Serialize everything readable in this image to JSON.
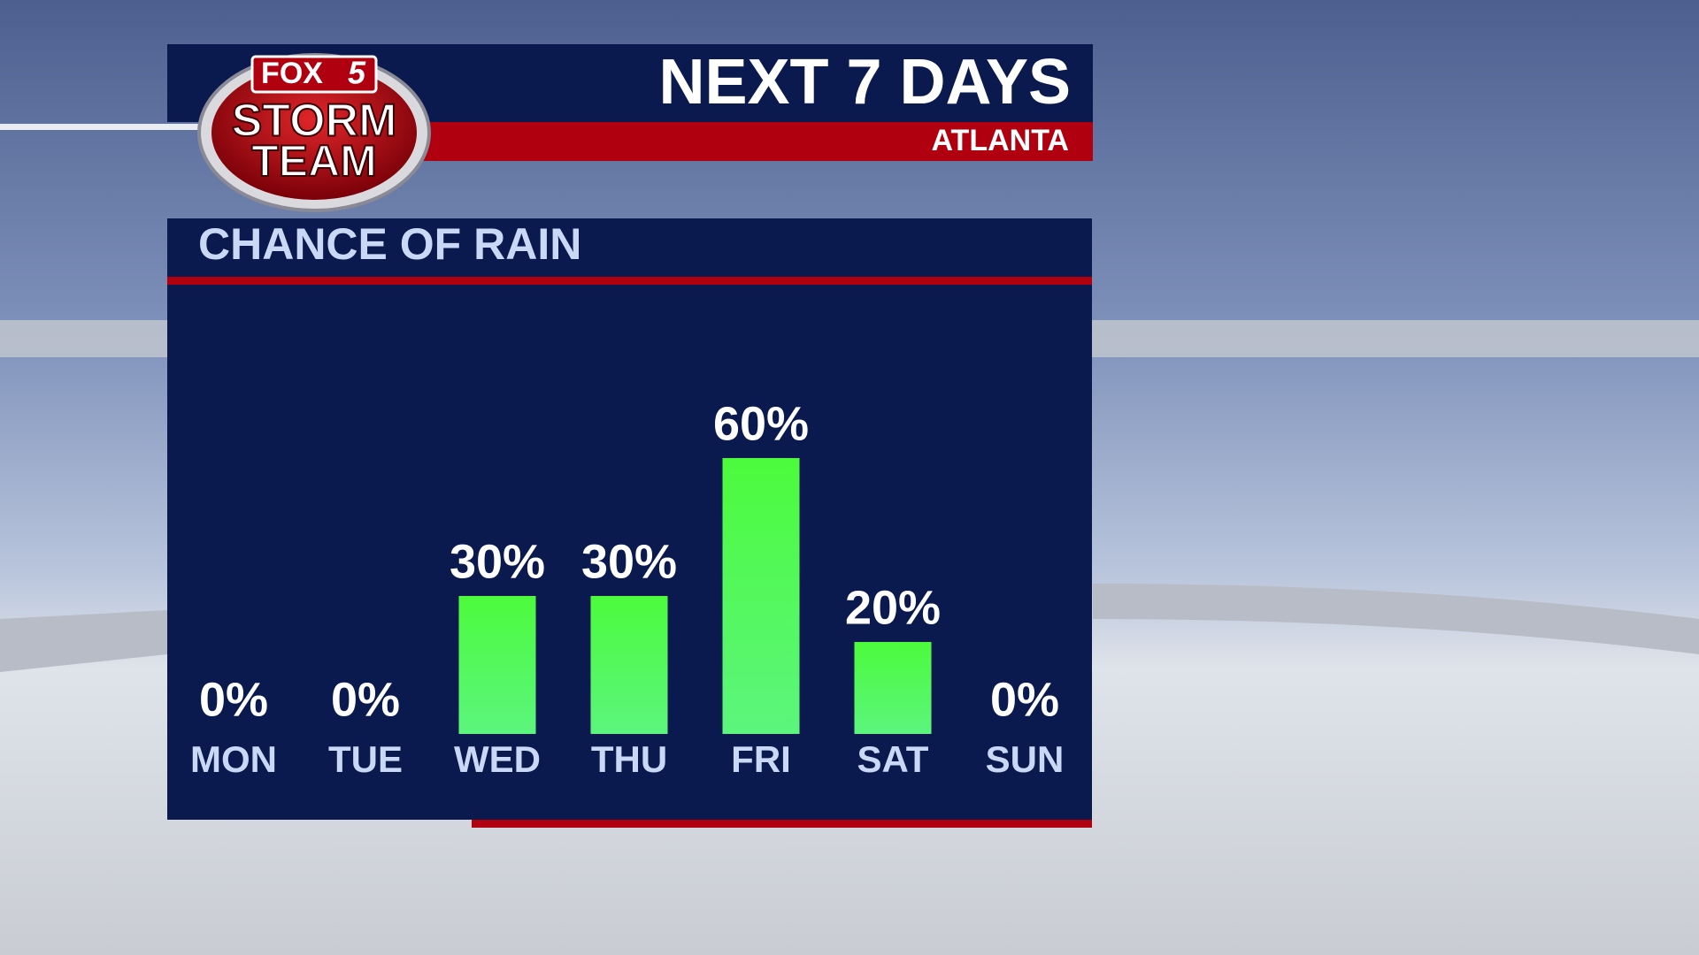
{
  "logo": {
    "brand": "FOX",
    "channel": "5",
    "line1": "STORM",
    "line2": "TEAM"
  },
  "header": {
    "title": "NEXT 7 DAYS",
    "location": "ATLANTA"
  },
  "chart_data": {
    "type": "bar",
    "title": "CHANCE OF RAIN",
    "categories": [
      "MON",
      "TUE",
      "WED",
      "THU",
      "FRI",
      "SAT",
      "SUN"
    ],
    "values": [
      0,
      0,
      30,
      30,
      60,
      20,
      0
    ],
    "value_labels": [
      "0%",
      "0%",
      "30%",
      "30%",
      "60%",
      "20%",
      "0%"
    ],
    "color": "#52f55e"
  }
}
